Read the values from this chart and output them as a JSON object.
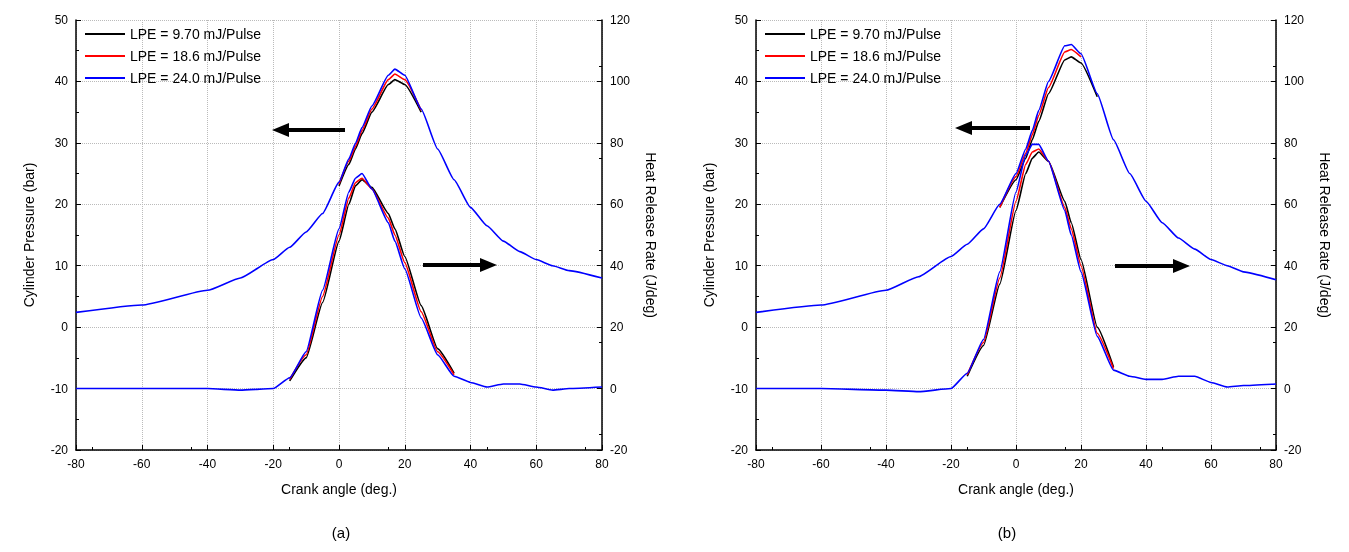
{
  "chart_data": [
    {
      "type": "line",
      "xlabel": "Crank angle (deg.)",
      "ylabel": "Cylinder Pressure (bar)",
      "y2label": "Heat Release Rate (J/deg)",
      "annotations": [
        "(a)"
      ],
      "x": [
        -80,
        -60,
        -40,
        -30,
        -20,
        -15,
        -10,
        -5,
        0,
        3,
        5,
        7,
        10,
        15,
        17,
        20,
        25,
        30,
        35,
        40,
        45,
        50,
        55,
        60,
        65,
        70,
        80
      ],
      "xlim": [
        -80,
        80
      ],
      "xticks": [
        -80,
        -60,
        -40,
        -20,
        0,
        20,
        40,
        60,
        80
      ],
      "ylim": [
        -20,
        50
      ],
      "yticks": [
        -20,
        -10,
        0,
        10,
        20,
        30,
        40,
        50
      ],
      "y2lim": [
        -20,
        120
      ],
      "y2ticks": [
        -20,
        0,
        20,
        40,
        60,
        80,
        100,
        120
      ],
      "grid": true,
      "legend": "top left",
      "marker": "none",
      "line_style": "solid",
      "series": [
        {
          "name": "LPE = 9.70 mJ/Pulse",
          "color": "#000000",
          "values": [
            null,
            null,
            null,
            null,
            null,
            null,
            null,
            null,
            23,
            26.5,
            29,
            31.5,
            35,
            39.5,
            40.3,
            39.5,
            35,
            null,
            null,
            null,
            null,
            null,
            null,
            null,
            null,
            null,
            null
          ]
        },
        {
          "name": "LPE = 18.6 mJ/Pulse",
          "color": "#ff0000",
          "values": [
            null,
            null,
            null,
            null,
            null,
            null,
            null,
            null,
            23.3,
            27,
            29.4,
            32,
            35.5,
            40.3,
            41.2,
            40.3,
            35.3,
            null,
            null,
            null,
            null,
            null,
            null,
            null,
            null,
            null,
            null
          ]
        },
        {
          "name": "LPE = 24.0 mJ/Pulse",
          "color": "#0000ff",
          "values": [
            2.4,
            3.6,
            6,
            8,
            11,
            13,
            15.5,
            18.5,
            23.6,
            27.4,
            29.9,
            32.5,
            36,
            41,
            42,
            41,
            35.5,
            29,
            24,
            19.5,
            16.5,
            14,
            12.3,
            11,
            10,
            9.2,
            8
          ]
        },
        {
          "color": "#000000",
          "axis": "y2",
          "values": [
            null,
            null,
            null,
            null,
            null,
            2.5,
            10,
            28,
            48,
            60,
            66,
            68,
            65.5,
            57,
            52,
            43,
            27,
            13,
            5,
            null,
            null,
            null,
            null,
            null,
            null,
            null,
            null
          ]
        },
        {
          "color": "#ff0000",
          "axis": "y2",
          "values": [
            null,
            null,
            null,
            null,
            null,
            3,
            11,
            30,
            50,
            62,
            67,
            68.5,
            65,
            55.5,
            50,
            41,
            25,
            12,
            4.5,
            null,
            null,
            null,
            null,
            null,
            null,
            null,
            null
          ]
        },
        {
          "color": "#0000ff",
          "axis": "y2",
          "values": [
            0,
            0,
            0,
            -0.5,
            0,
            3.5,
            12,
            32,
            52,
            64,
            68.5,
            70,
            65,
            54,
            48,
            39,
            23,
            11,
            4,
            2,
            0.5,
            1.5,
            1.5,
            0.5,
            -0.5,
            0,
            0.5
          ]
        }
      ]
    },
    {
      "type": "line",
      "xlabel": "Crank angle (deg.)",
      "ylabel": "Cylinder Pressure (bar)",
      "y2label": "Heat Release Rate (J/deg)",
      "annotations": [
        "(b)"
      ],
      "x": [
        -80,
        -60,
        -40,
        -30,
        -20,
        -15,
        -10,
        -5,
        0,
        3,
        5,
        7,
        10,
        15,
        17,
        20,
        25,
        30,
        35,
        40,
        45,
        50,
        55,
        60,
        65,
        70,
        80
      ],
      "xlim": [
        -80,
        80
      ],
      "xticks": [
        -80,
        -60,
        -40,
        -20,
        0,
        20,
        40,
        60,
        80
      ],
      "ylim": [
        -20,
        50
      ],
      "yticks": [
        -20,
        -10,
        0,
        10,
        20,
        30,
        40,
        50
      ],
      "y2lim": [
        -20,
        120
      ],
      "y2ticks": [
        -20,
        0,
        20,
        40,
        60,
        80,
        100,
        120
      ],
      "grid": true,
      "legend": "top left",
      "marker": "none",
      "line_style": "solid",
      "series": [
        {
          "name": "LPE = 9.70 mJ/Pulse",
          "color": "#000000",
          "values": [
            null,
            null,
            null,
            null,
            null,
            null,
            null,
            19.5,
            24,
            27.5,
            30.5,
            33.5,
            38,
            43.5,
            44,
            43,
            37.5,
            null,
            null,
            null,
            null,
            null,
            null,
            null,
            null,
            null,
            null
          ]
        },
        {
          "name": "LPE = 18.6 mJ/Pulse",
          "color": "#ff0000",
          "values": [
            null,
            null,
            null,
            null,
            null,
            null,
            null,
            19.5,
            24.5,
            28.3,
            31.3,
            34.5,
            39,
            44.8,
            45.2,
            44,
            null,
            null,
            null,
            null,
            null,
            null,
            null,
            null,
            null,
            null,
            null
          ]
        },
        {
          "name": "LPE = 24.0 mJ/Pulse",
          "color": "#0000ff",
          "values": [
            2.4,
            3.6,
            6,
            8.2,
            11.5,
            13.5,
            16,
            20,
            25,
            29,
            32,
            35.3,
            40,
            45.8,
            46,
            44.5,
            38,
            30.5,
            25,
            20.5,
            17,
            14.5,
            12.7,
            11,
            10,
            9,
            7.7
          ]
        },
        {
          "color": "#000000",
          "axis": "y2",
          "values": [
            null,
            null,
            null,
            null,
            null,
            4,
            14,
            34,
            58,
            70,
            75,
            77,
            74,
            61,
            54,
            42,
            20,
            7,
            null,
            null,
            null,
            null,
            null,
            null,
            null,
            null,
            null
          ]
        },
        {
          "color": "#ff0000",
          "axis": "y2",
          "values": [
            null,
            null,
            null,
            null,
            null,
            4.5,
            15,
            36,
            61,
            73,
            77,
            78,
            74,
            59,
            52,
            40,
            18,
            6.5,
            null,
            null,
            null,
            null,
            null,
            null,
            null,
            null,
            null
          ]
        },
        {
          "color": "#0000ff",
          "axis": "y2",
          "values": [
            0,
            0,
            -0.5,
            -1,
            0,
            5,
            16,
            38,
            64,
            76,
            79.5,
            79.5,
            74,
            58,
            50,
            38,
            17,
            6,
            4,
            3,
            3,
            4,
            4,
            2,
            0.5,
            1,
            1.5
          ]
        }
      ]
    }
  ]
}
